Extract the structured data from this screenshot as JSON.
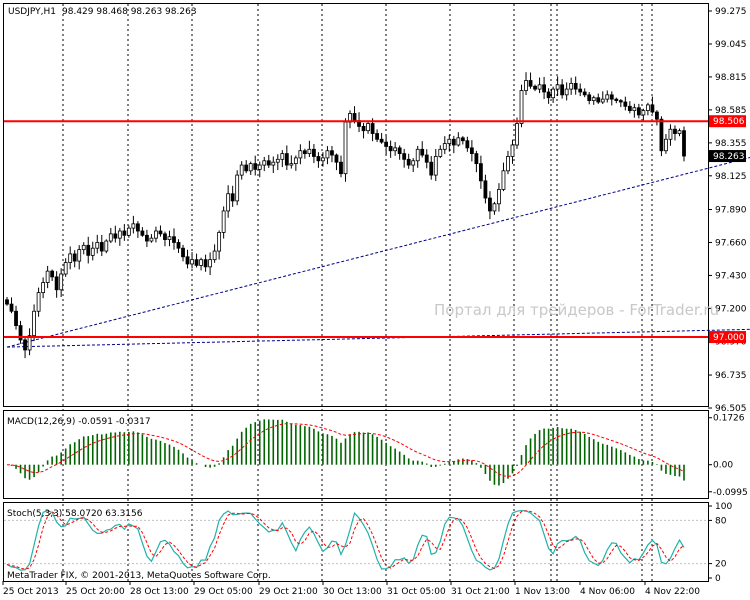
{
  "header": {
    "symbol": "USDJPY,H1",
    "ohlc": "98.429 98.468 98.263 98.263"
  },
  "watermark": "Портал для трейдеров - ForTrader.ru",
  "copyright": "MetaTrader FIX, © 2001-2013, MetaQuotes Software Corp.",
  "colors": {
    "candle": "#000000",
    "level_line": "#ff0000",
    "trend_line": "#00008b",
    "macd_hist": "#006400",
    "macd_signal": "#ff0000",
    "stoch_main": "#20b2aa",
    "stoch_signal": "#ff0000",
    "grid_vline": "#000000"
  },
  "chart_data": [
    {
      "type": "candlestick",
      "title": "USDJPY,H1",
      "y_ticks": [
        "99.275",
        "99.045",
        "98.815",
        "98.585",
        "98.355",
        "98.125",
        "97.890",
        "97.660",
        "97.430",
        "97.200",
        "96.970",
        "96.735",
        "96.505"
      ],
      "ylim": [
        96.505,
        99.275
      ],
      "x_ticks": [
        "25 Oct 2013",
        "25 Oct 20:00",
        "28 Oct 13:00",
        "29 Oct 05:00",
        "29 Oct 21:00",
        "30 Oct 13:00",
        "31 Oct 05:00",
        "31 Oct 21:00",
        "1 Nov 13:00",
        "4 Nov 06:00",
        "4 Nov 22:00"
      ],
      "price_tags": {
        "level_high": "98.506",
        "current": "98.263",
        "level_low": "97.000"
      },
      "horizontal_levels": [
        98.506,
        97.0
      ],
      "trend_lines": [
        {
          "from": [
            0,
            96.93
          ],
          "to": [
            173,
            98.32
          ]
        },
        {
          "from": [
            0,
            96.93
          ],
          "to": [
            173,
            97.06
          ]
        }
      ],
      "closes": [
        97.23,
        97.18,
        97.08,
        96.98,
        96.91,
        97.01,
        97.18,
        97.31,
        97.38,
        97.46,
        97.42,
        97.33,
        97.44,
        97.52,
        97.58,
        97.53,
        97.61,
        97.64,
        97.57,
        97.62,
        97.66,
        97.6,
        97.67,
        97.72,
        97.69,
        97.74,
        97.71,
        97.76,
        97.79,
        97.74,
        97.71,
        97.67,
        97.69,
        97.74,
        97.72,
        97.68,
        97.7,
        97.66,
        97.62,
        97.56,
        97.51,
        97.54,
        97.5,
        97.54,
        97.49,
        97.54,
        97.6,
        97.73,
        97.88,
        98.0,
        97.95,
        98.13,
        98.2,
        98.16,
        98.21,
        98.17,
        98.2,
        98.23,
        98.2,
        98.22,
        98.24,
        98.28,
        98.2,
        98.21,
        98.25,
        98.3,
        98.28,
        98.31,
        98.26,
        98.23,
        98.25,
        98.3,
        98.27,
        98.22,
        98.14,
        98.5,
        98.56,
        98.51,
        98.47,
        98.44,
        98.49,
        98.42,
        98.38,
        98.36,
        98.33,
        98.3,
        98.32,
        98.28,
        98.24,
        98.2,
        98.23,
        98.31,
        98.27,
        98.22,
        98.13,
        98.26,
        98.31,
        98.35,
        98.38,
        98.34,
        98.39,
        98.37,
        98.32,
        98.28,
        98.21,
        98.09,
        97.97,
        97.88,
        97.93,
        98.03,
        98.16,
        98.26,
        98.34,
        98.49,
        98.72,
        98.79,
        98.75,
        98.73,
        98.76,
        98.71,
        98.67,
        98.73,
        98.76,
        98.69,
        98.73,
        98.77,
        98.73,
        98.71,
        98.69,
        98.65,
        98.67,
        98.64,
        98.66,
        98.69,
        98.66,
        98.65,
        98.64,
        98.61,
        98.58,
        98.6,
        98.55,
        98.58,
        98.62,
        98.57,
        98.52,
        98.3,
        98.38,
        98.45,
        98.42,
        98.44,
        98.263
      ],
      "series_notes": "approximate hourly closes read from candles"
    },
    {
      "type": "macd",
      "title": "MACD(12,26,9) -0.0591 -0.0317",
      "y_ticks": [
        "0.1726",
        "0.00",
        "-0.0995"
      ],
      "ylim": [
        -0.115,
        0.19
      ]
    },
    {
      "type": "stochastic",
      "title": "Stoch(5,3,3) 58.0720 63.3156",
      "y_ticks": [
        "100",
        "80",
        "20",
        "0"
      ],
      "ylim": [
        0,
        100
      ]
    }
  ]
}
